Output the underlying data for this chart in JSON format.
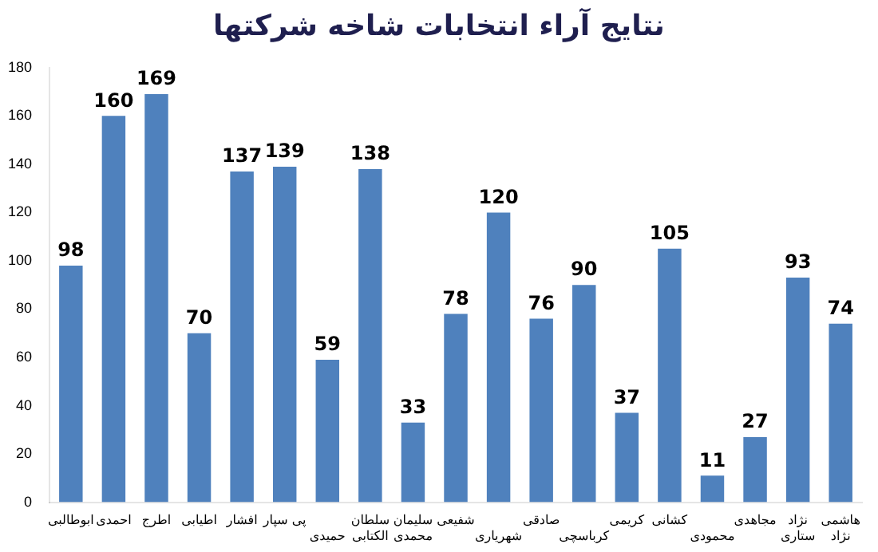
{
  "chart_data": {
    "type": "bar",
    "title": "نتایج آراء انتخابات شاخه شرکتها",
    "categories": [
      "ابوطالبی",
      "احمدی",
      "اطرج",
      "اطیابی",
      "افشار",
      "پی سپار",
      "حمیدی",
      "سلطان الکتابی",
      "سلیمان محمدی",
      "شفیعی",
      "شهریاری",
      "صادقی",
      "کرباسچی",
      "کریمی",
      "کشانی",
      "محمودی",
      "مجاهدی",
      "نژاد ستاری",
      "هاشمی نژاد"
    ],
    "values": [
      98,
      160,
      169,
      70,
      137,
      139,
      59,
      138,
      33,
      78,
      120,
      76,
      90,
      37,
      105,
      11,
      27,
      93,
      74
    ],
    "color": "#4f81bd",
    "ylim": [
      0,
      180
    ],
    "yticks": [
      0,
      20,
      40,
      60,
      80,
      100,
      120,
      140,
      160,
      180
    ],
    "grid": false,
    "data_labels": true
  }
}
